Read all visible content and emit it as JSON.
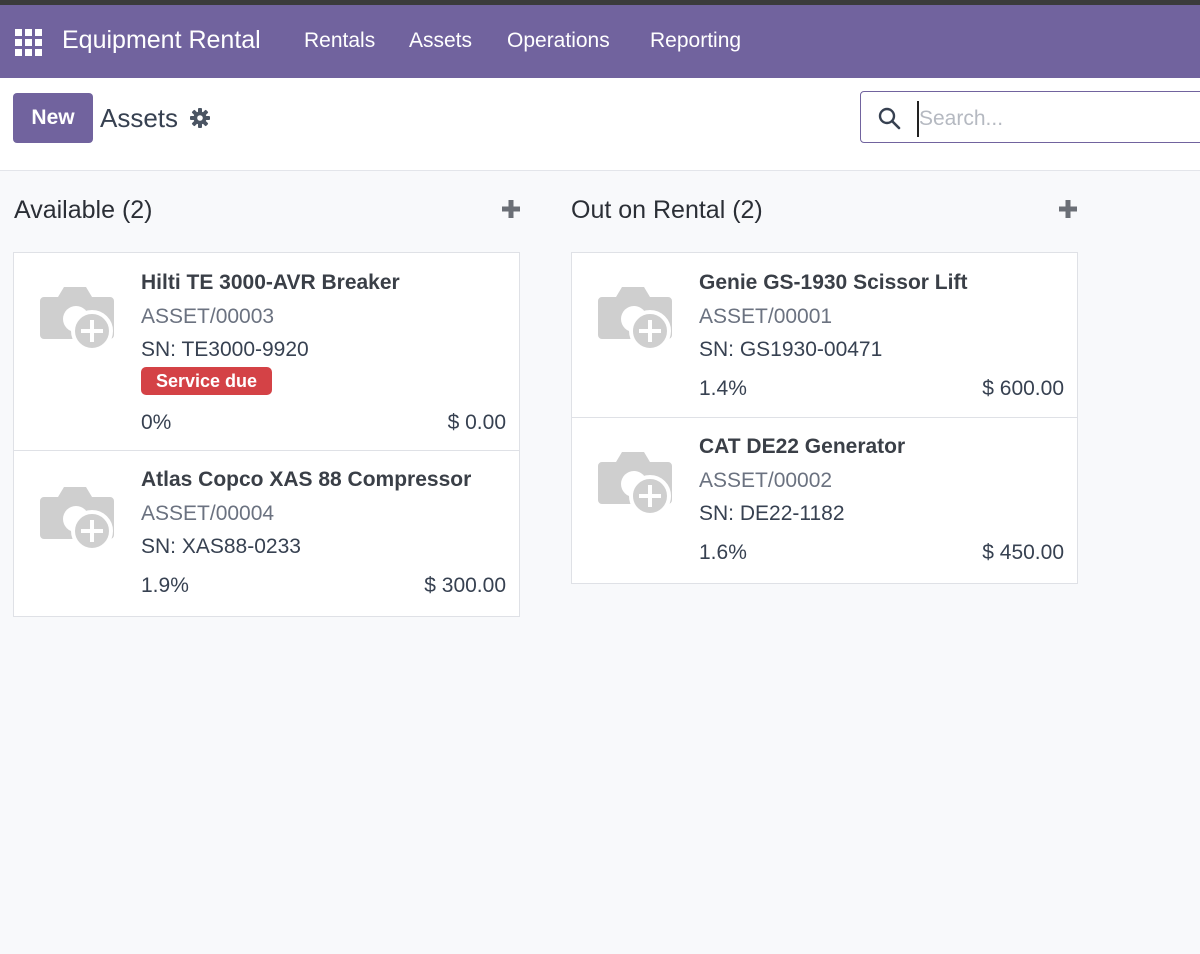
{
  "navbar": {
    "brand": "Equipment Rental",
    "menu": [
      "Rentals",
      "Assets",
      "Operations",
      "Reporting"
    ],
    "color": "#71639e"
  },
  "controlbar": {
    "new_label": "New",
    "title": "Assets",
    "search_placeholder": "Search..."
  },
  "columns": [
    {
      "title": "Available (2)",
      "cards": [
        {
          "name": "Hilti TE 3000-AVR Breaker",
          "ref": "ASSET/00003",
          "sn": "SN: TE3000-9920",
          "badge": "Service due",
          "pct": "0%",
          "price": "$ 0.00"
        },
        {
          "name": "Atlas Copco XAS 88 Compressor",
          "ref": "ASSET/00004",
          "sn": "SN: XAS88-0233",
          "pct": "1.9%",
          "price": "$ 300.00"
        }
      ]
    },
    {
      "title": "Out on Rental (2)",
      "cards": [
        {
          "name": "Genie GS-1930 Scissor Lift",
          "ref": "ASSET/00001",
          "sn": "SN: GS1930-00471",
          "pct": "1.4%",
          "price": "$ 600.00"
        },
        {
          "name": "CAT DE22 Generator",
          "ref": "ASSET/00002",
          "sn": "SN: DE22-1182",
          "pct": "1.6%",
          "price": "$ 450.00"
        }
      ]
    }
  ],
  "colors": {
    "badge": "#d44246",
    "accent": "#71639e"
  }
}
